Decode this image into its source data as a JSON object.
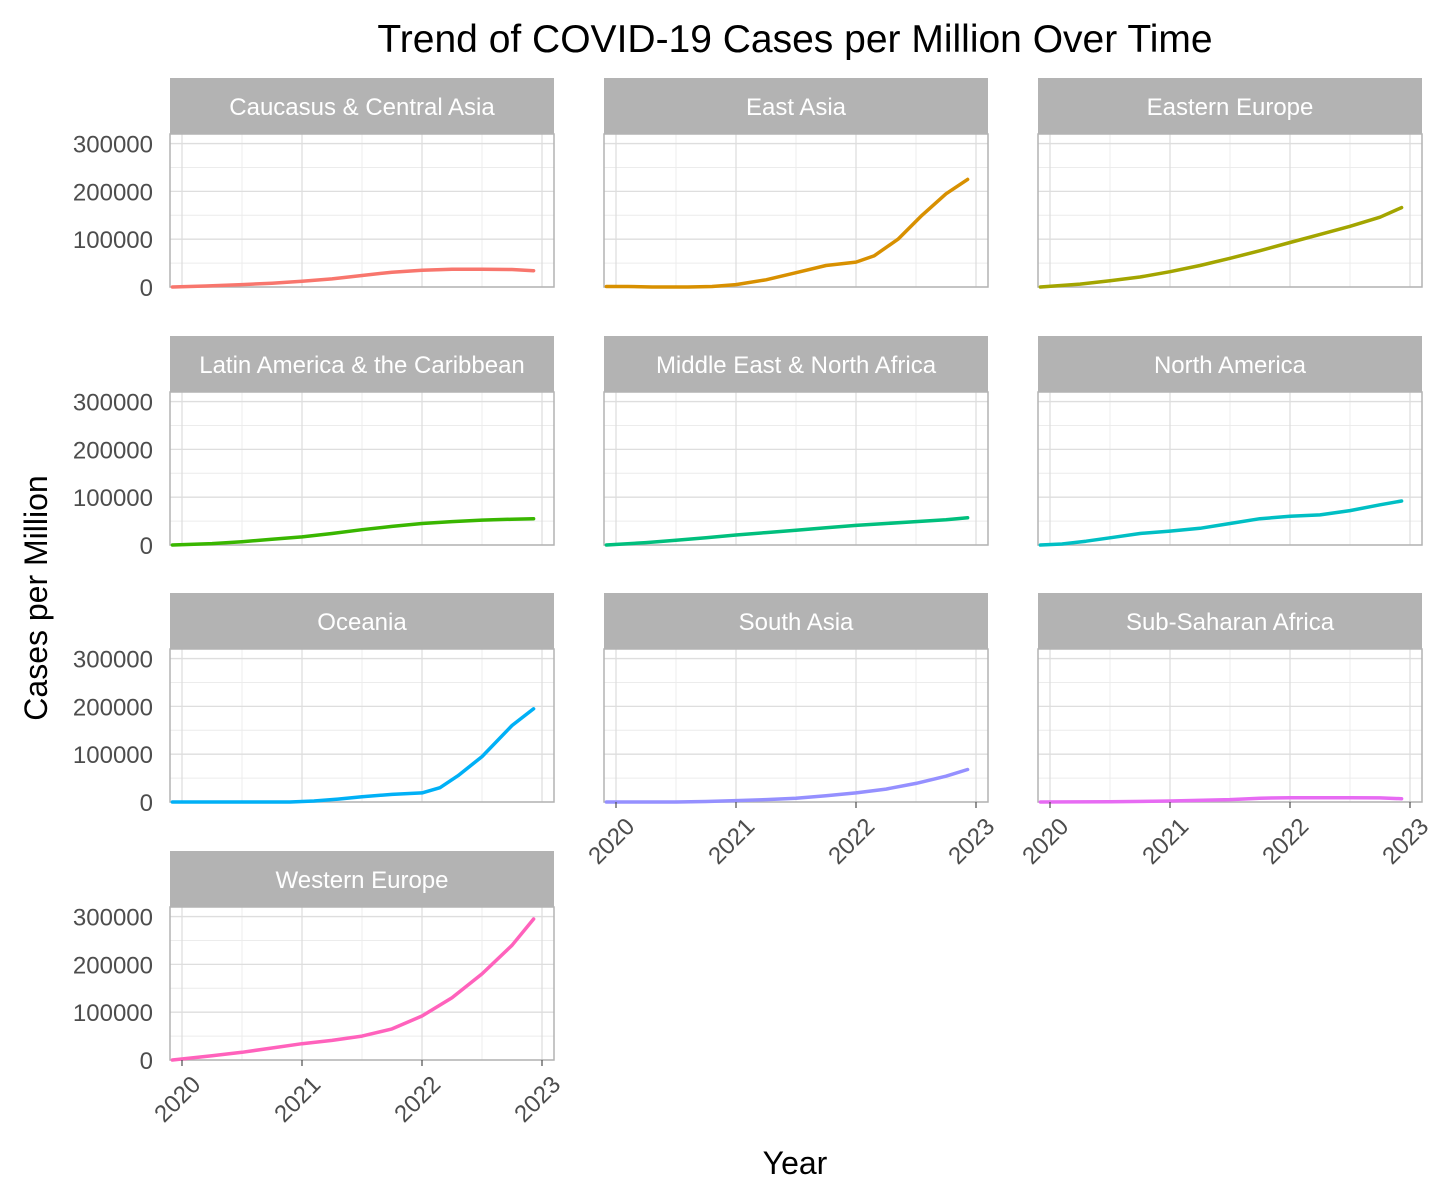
{
  "chart_data": {
    "type": "line",
    "title": "Trend of COVID-19 Cases per Million Over Time",
    "xlabel": "Year",
    "ylabel": "Cases per Million",
    "x_ticks": [
      "2020",
      "2021",
      "2022",
      "2023"
    ],
    "xlim": [
      2019.9,
      2023.1
    ],
    "y_ticks": [
      "0",
      "100000",
      "200000",
      "300000"
    ],
    "ylim": [
      0,
      320000
    ],
    "grid": true,
    "legend": "none",
    "series": [
      {
        "name": "Caucasus & Central Asia",
        "color": "#F8766D",
        "points": [
          [
            2019.92,
            0
          ],
          [
            2020.2,
            2000
          ],
          [
            2020.5,
            5000
          ],
          [
            2020.75,
            8000
          ],
          [
            2021.0,
            12000
          ],
          [
            2021.25,
            17000
          ],
          [
            2021.5,
            24000
          ],
          [
            2021.75,
            31000
          ],
          [
            2022.0,
            35000
          ],
          [
            2022.25,
            37000
          ],
          [
            2022.5,
            37000
          ],
          [
            2022.75,
            36500
          ],
          [
            2022.93,
            34000
          ]
        ]
      },
      {
        "name": "East Asia",
        "color": "#D89000",
        "points": [
          [
            2019.92,
            1000
          ],
          [
            2020.1,
            1000
          ],
          [
            2020.3,
            0
          ],
          [
            2020.6,
            0
          ],
          [
            2020.8,
            1000
          ],
          [
            2021.0,
            5000
          ],
          [
            2021.25,
            15000
          ],
          [
            2021.5,
            30000
          ],
          [
            2021.75,
            45000
          ],
          [
            2022.0,
            52000
          ],
          [
            2022.15,
            65000
          ],
          [
            2022.35,
            100000
          ],
          [
            2022.55,
            150000
          ],
          [
            2022.75,
            195000
          ],
          [
            2022.93,
            225000
          ]
        ]
      },
      {
        "name": "Eastern Europe",
        "color": "#A3A500",
        "points": [
          [
            2019.92,
            0
          ],
          [
            2020.25,
            6000
          ],
          [
            2020.5,
            13000
          ],
          [
            2020.75,
            21000
          ],
          [
            2021.0,
            32000
          ],
          [
            2021.25,
            45000
          ],
          [
            2021.5,
            60000
          ],
          [
            2021.75,
            76000
          ],
          [
            2022.0,
            93000
          ],
          [
            2022.25,
            110000
          ],
          [
            2022.5,
            127000
          ],
          [
            2022.75,
            146000
          ],
          [
            2022.93,
            166000
          ]
        ]
      },
      {
        "name": "Latin America & the Caribbean",
        "color": "#39B600",
        "points": [
          [
            2019.92,
            0
          ],
          [
            2020.25,
            3000
          ],
          [
            2020.5,
            7000
          ],
          [
            2020.75,
            12000
          ],
          [
            2021.0,
            17000
          ],
          [
            2021.25,
            24000
          ],
          [
            2021.5,
            32000
          ],
          [
            2021.75,
            39000
          ],
          [
            2022.0,
            45000
          ],
          [
            2022.25,
            49000
          ],
          [
            2022.5,
            52000
          ],
          [
            2022.75,
            54000
          ],
          [
            2022.93,
            55000
          ]
        ]
      },
      {
        "name": "Middle East & North Africa",
        "color": "#00BF7D",
        "points": [
          [
            2019.92,
            0
          ],
          [
            2020.25,
            5000
          ],
          [
            2020.5,
            10000
          ],
          [
            2020.75,
            15000
          ],
          [
            2021.0,
            21000
          ],
          [
            2021.25,
            26000
          ],
          [
            2021.5,
            31000
          ],
          [
            2021.75,
            36000
          ],
          [
            2022.0,
            41000
          ],
          [
            2022.25,
            45000
          ],
          [
            2022.5,
            49000
          ],
          [
            2022.75,
            53000
          ],
          [
            2022.93,
            57000
          ]
        ]
      },
      {
        "name": "North America",
        "color": "#00BFC4",
        "points": [
          [
            2019.92,
            0
          ],
          [
            2020.1,
            2000
          ],
          [
            2020.3,
            8000
          ],
          [
            2020.5,
            15000
          ],
          [
            2020.75,
            24000
          ],
          [
            2021.0,
            29000
          ],
          [
            2021.25,
            35000
          ],
          [
            2021.5,
            45000
          ],
          [
            2021.75,
            55000
          ],
          [
            2022.0,
            60000
          ],
          [
            2022.25,
            63000
          ],
          [
            2022.5,
            72000
          ],
          [
            2022.75,
            84000
          ],
          [
            2022.93,
            92000
          ]
        ]
      },
      {
        "name": "Oceania",
        "color": "#00B0F6",
        "points": [
          [
            2019.92,
            0
          ],
          [
            2020.5,
            0
          ],
          [
            2020.9,
            0
          ],
          [
            2021.1,
            2000
          ],
          [
            2021.3,
            6000
          ],
          [
            2021.5,
            11000
          ],
          [
            2021.75,
            16000
          ],
          [
            2022.0,
            19000
          ],
          [
            2022.15,
            30000
          ],
          [
            2022.3,
            55000
          ],
          [
            2022.5,
            95000
          ],
          [
            2022.75,
            160000
          ],
          [
            2022.93,
            195000
          ]
        ]
      },
      {
        "name": "South Asia",
        "color": "#9590FF",
        "points": [
          [
            2019.92,
            0
          ],
          [
            2020.5,
            0
          ],
          [
            2020.75,
            1000
          ],
          [
            2021.0,
            3000
          ],
          [
            2021.25,
            5000
          ],
          [
            2021.5,
            8000
          ],
          [
            2021.75,
            13000
          ],
          [
            2022.0,
            19000
          ],
          [
            2022.25,
            27000
          ],
          [
            2022.5,
            39000
          ],
          [
            2022.75,
            54000
          ],
          [
            2022.93,
            68000
          ]
        ]
      },
      {
        "name": "Sub-Saharan Africa",
        "color": "#E76BF3",
        "points": [
          [
            2019.92,
            0
          ],
          [
            2020.5,
            500
          ],
          [
            2021.0,
            2000
          ],
          [
            2021.5,
            5000
          ],
          [
            2021.75,
            8000
          ],
          [
            2022.0,
            9000
          ],
          [
            2022.5,
            9000
          ],
          [
            2022.75,
            8500
          ],
          [
            2022.93,
            7000
          ]
        ]
      },
      {
        "name": "Western Europe",
        "color": "#FF62BC",
        "points": [
          [
            2019.92,
            0
          ],
          [
            2020.25,
            9000
          ],
          [
            2020.5,
            16000
          ],
          [
            2020.75,
            25000
          ],
          [
            2021.0,
            34000
          ],
          [
            2021.25,
            41000
          ],
          [
            2021.5,
            50000
          ],
          [
            2021.75,
            65000
          ],
          [
            2022.0,
            92000
          ],
          [
            2022.25,
            130000
          ],
          [
            2022.5,
            180000
          ],
          [
            2022.75,
            240000
          ],
          [
            2022.93,
            295000
          ]
        ]
      }
    ]
  }
}
